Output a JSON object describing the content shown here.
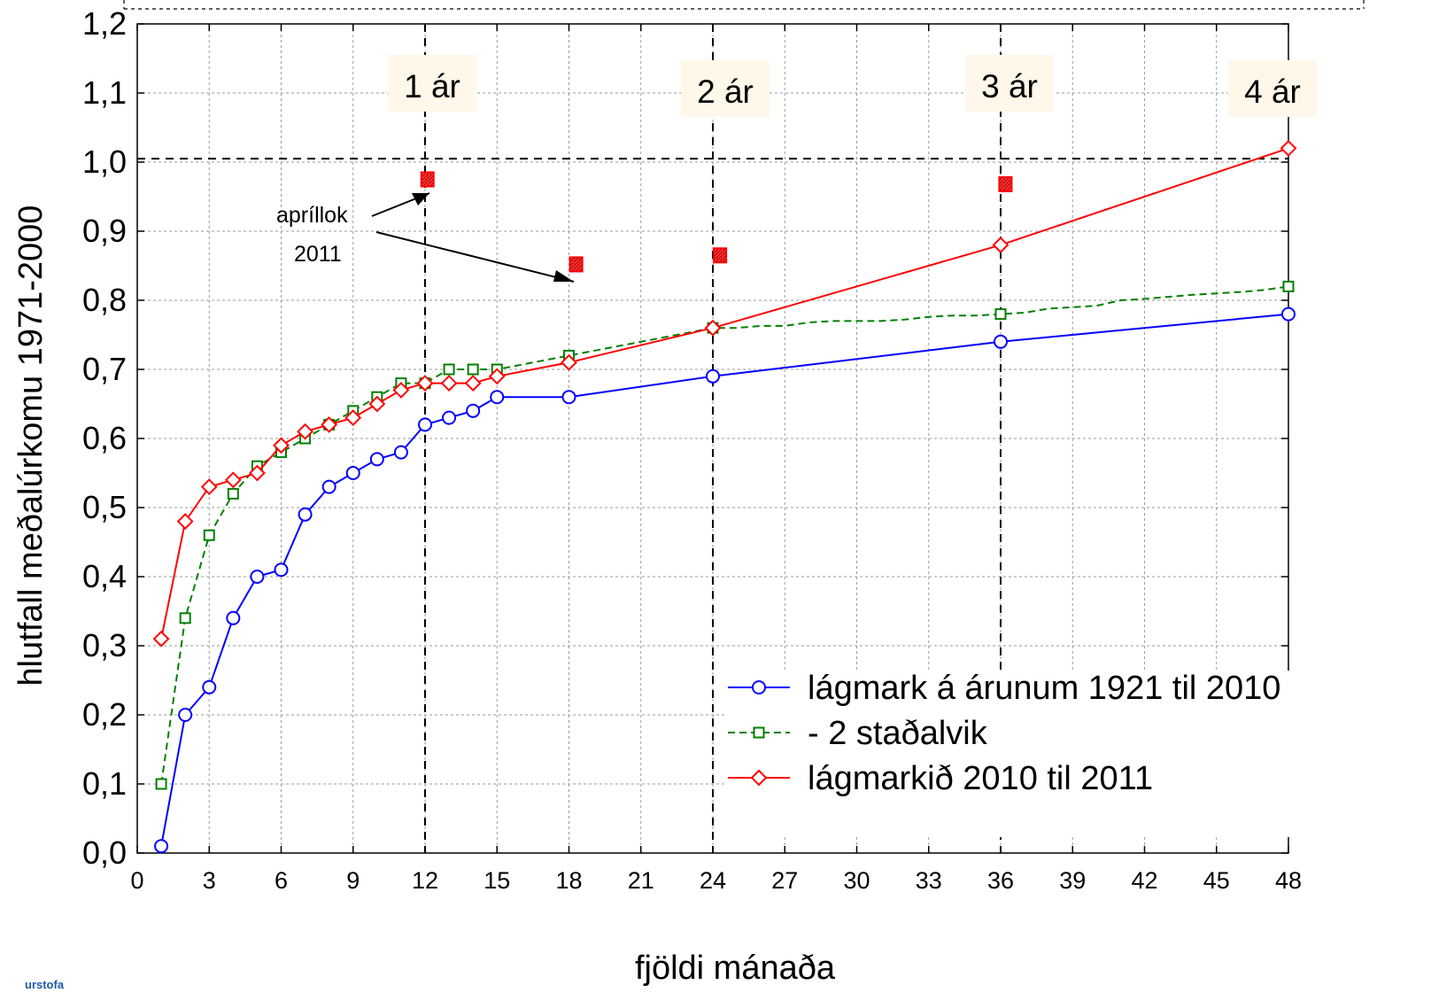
{
  "chart_data": {
    "type": "line",
    "xlabel": "fjöldi mánaða",
    "ylabel": "hlutfall meðalúrkomu 1971-2000",
    "xlim": [
      0,
      48
    ],
    "ylim": [
      0.0,
      1.2
    ],
    "x_ticks": [
      0,
      3,
      6,
      9,
      12,
      15,
      18,
      21,
      24,
      27,
      30,
      33,
      36,
      39,
      42,
      45,
      48
    ],
    "y_ticks": [
      0.0,
      0.1,
      0.2,
      0.3,
      0.4,
      0.5,
      0.6,
      0.7,
      0.8,
      0.9,
      1.0,
      1.1,
      1.2
    ],
    "y_tick_labels": [
      "0,0",
      "0,1",
      "0,2",
      "0,3",
      "0,4",
      "0,5",
      "0,6",
      "0,7",
      "0,8",
      "0,9",
      "1,0",
      "1,1",
      "1,2"
    ],
    "grid": true,
    "legend_position": "bottom-right",
    "series": [
      {
        "name": "lágmark á árunum 1921 til 2010",
        "color": "#0000ff",
        "marker": "circle",
        "dash": "solid",
        "x": [
          1,
          2,
          3,
          4,
          5,
          6,
          7,
          8,
          9,
          10,
          11,
          12,
          13,
          14,
          15,
          18,
          24,
          36,
          48
        ],
        "y": [
          0.01,
          0.2,
          0.24,
          0.34,
          0.4,
          0.41,
          0.49,
          0.53,
          0.55,
          0.57,
          0.58,
          0.62,
          0.63,
          0.64,
          0.66,
          0.66,
          0.69,
          0.74,
          0.78
        ]
      },
      {
        "name": "- 2 staðalvik",
        "color": "#008000",
        "marker": "square",
        "dash": "dashed",
        "x": [
          1,
          2,
          3,
          4,
          5,
          6,
          7,
          8,
          9,
          10,
          11,
          12,
          13,
          14,
          15,
          18,
          24,
          36,
          48
        ],
        "y": [
          0.1,
          0.34,
          0.46,
          0.52,
          0.56,
          0.58,
          0.6,
          0.62,
          0.64,
          0.66,
          0.68,
          0.68,
          0.7,
          0.7,
          0.7,
          0.72,
          0.76,
          0.78,
          0.82
        ],
        "step_x": [
          24,
          25,
          26,
          27,
          28,
          29,
          30,
          31,
          32,
          33,
          34,
          35,
          36,
          37,
          38,
          39,
          40,
          41,
          42,
          43,
          44,
          45,
          46,
          47,
          48
        ],
        "step_y": [
          0.76,
          0.76,
          0.763,
          0.763,
          0.768,
          0.77,
          0.77,
          0.77,
          0.772,
          0.776,
          0.778,
          0.778,
          0.78,
          0.782,
          0.788,
          0.79,
          0.792,
          0.8,
          0.802,
          0.805,
          0.808,
          0.81,
          0.812,
          0.815,
          0.82
        ]
      },
      {
        "name": "lágmarkið 2010 til 2011",
        "color": "#ff0000",
        "marker": "diamond",
        "dash": "solid",
        "x": [
          1,
          2,
          3,
          4,
          5,
          6,
          7,
          8,
          9,
          10,
          11,
          12,
          13,
          14,
          15,
          18,
          24,
          36,
          48
        ],
        "y": [
          0.31,
          0.48,
          0.53,
          0.54,
          0.55,
          0.59,
          0.61,
          0.62,
          0.63,
          0.65,
          0.67,
          0.68,
          0.68,
          0.68,
          0.69,
          0.71,
          0.76,
          0.88,
          1.02
        ]
      }
    ],
    "extra_points": {
      "color": "#ff0000",
      "marker": "filled-square",
      "x": [
        12.1,
        18.3,
        24.3,
        36.2
      ],
      "y": [
        0.975,
        0.852,
        0.865,
        0.968
      ]
    },
    "reference_lines": {
      "horizontal_y": 1.005,
      "vertical_x": [
        12,
        24,
        36
      ]
    },
    "year_labels": [
      {
        "x": 12,
        "text": "1 ár"
      },
      {
        "x": 24,
        "text": "2 ár"
      },
      {
        "x": 36,
        "text": "3 ár"
      },
      {
        "x": 48,
        "text": "4 ár"
      }
    ],
    "annotation": {
      "line1": "apríllok",
      "line2": "2011"
    }
  },
  "logo": {
    "text": "urstofa"
  }
}
